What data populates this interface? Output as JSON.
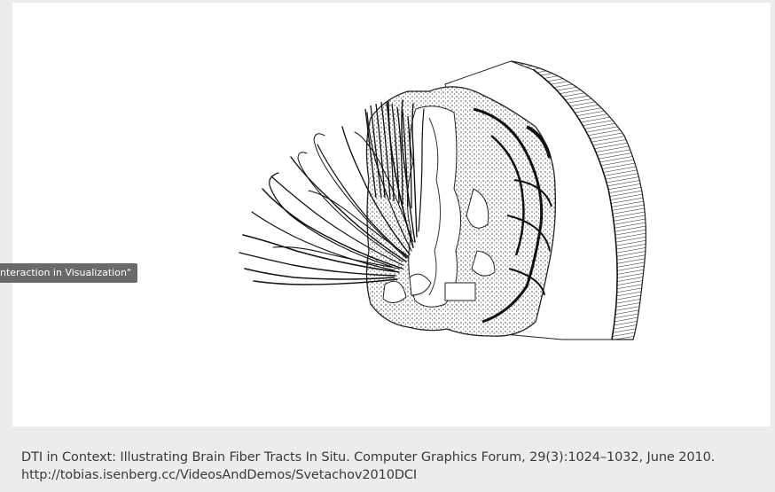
{
  "tooltip": {
    "text": "nteraction in Visualization\""
  },
  "figure": {
    "image_icon": "brain-fiber-tracts-illustration",
    "colors": {
      "panel": "#ffffff",
      "ink": "#1a1a1a",
      "background": "#ececec"
    }
  },
  "caption": {
    "citation": "DTI in Context: Illustrating Brain Fiber Tracts In Situ. Computer Graphics Forum, 29(3):1024–1032, June 2010.",
    "url": "http://tobias.isenberg.cc/VideosAndDemos/Svetachov2010DCI"
  }
}
